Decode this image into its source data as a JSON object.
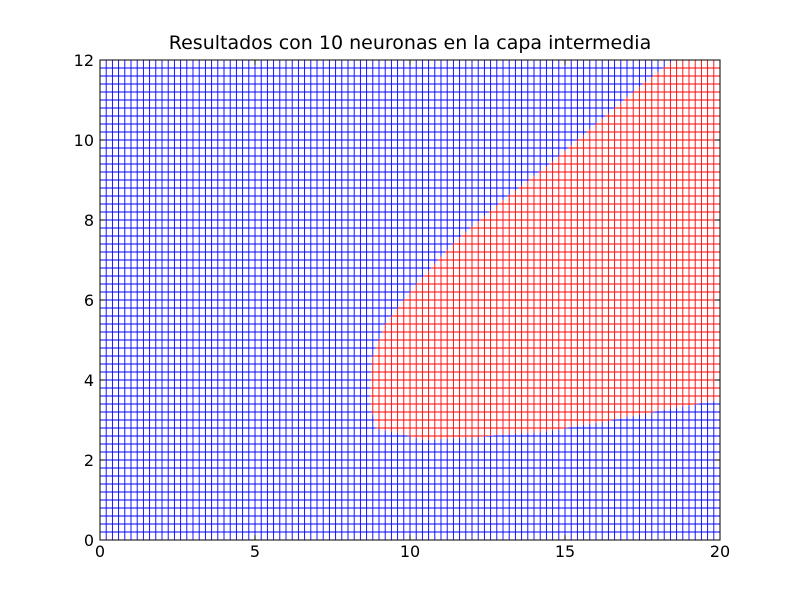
{
  "chart_data": {
    "type": "heatmap",
    "title": "Resultados con 10 neuronas en la capa intermedia",
    "xlabel": "",
    "ylabel": "",
    "xlim": [
      0,
      20
    ],
    "ylim": [
      0,
      12
    ],
    "xticks": [
      0,
      5,
      10,
      15,
      20
    ],
    "yticks": [
      0,
      2,
      4,
      6,
      8,
      10,
      12
    ],
    "xtick_labels": [
      "0",
      "5",
      "10",
      "15",
      "20"
    ],
    "ytick_labels": [
      "0",
      "2",
      "4",
      "6",
      "8",
      "10",
      "12"
    ],
    "grid_step": 0.2,
    "grid": true,
    "classes": [
      {
        "name": "class-blue",
        "color": "#0000ff"
      },
      {
        "name": "class-red",
        "color": "#ff0000"
      }
    ],
    "red_region_boundary": [
      [
        8.9,
        2.8
      ],
      [
        10.5,
        2.5
      ],
      [
        12.5,
        2.6
      ],
      [
        14.3,
        2.7
      ],
      [
        16.5,
        3.0
      ],
      [
        18.5,
        3.3
      ],
      [
        20,
        3.5
      ],
      [
        20,
        12
      ],
      [
        18.5,
        12
      ],
      [
        17.5,
        11.4
      ],
      [
        16.0,
        10.4
      ],
      [
        14.5,
        9.4
      ],
      [
        13.0,
        8.5
      ],
      [
        11.5,
        7.5
      ],
      [
        10.2,
        6.4
      ],
      [
        9.2,
        5.4
      ],
      [
        8.8,
        4.6
      ],
      [
        8.7,
        3.5
      ]
    ]
  }
}
